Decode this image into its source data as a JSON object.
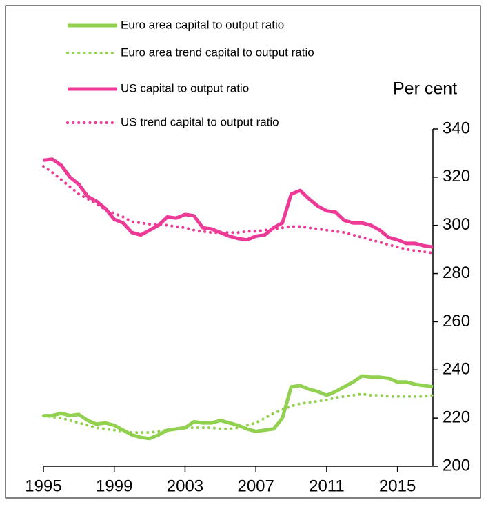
{
  "chart_data": {
    "type": "line",
    "y_axis_label": "Per cent",
    "x": [
      1995,
      1995.5,
      1996,
      1996.5,
      1997,
      1997.5,
      1998,
      1998.5,
      1999,
      1999.5,
      2000,
      2000.5,
      2001,
      2001.5,
      2002,
      2002.5,
      2003,
      2003.5,
      2004,
      2004.5,
      2005,
      2005.5,
      2006,
      2006.5,
      2007,
      2007.5,
      2008,
      2008.5,
      2009,
      2009.5,
      2010,
      2010.5,
      2011,
      2011.5,
      2012,
      2012.5,
      2013,
      2013.5,
      2014,
      2014.5,
      2015,
      2015.5,
      2016,
      2016.5,
      2017
    ],
    "series": [
      {
        "name": "Euro area capital to output ratio",
        "color": "#92d050",
        "style": "solid",
        "values": [
          221,
          221,
          222,
          221,
          221.5,
          219,
          217.5,
          218,
          217,
          215,
          213,
          212,
          211.5,
          213,
          215,
          215.5,
          216,
          218.5,
          218,
          218,
          219,
          218,
          217,
          215.5,
          214.5,
          215,
          215.5,
          220,
          233,
          233.5,
          232,
          231,
          229.5,
          231,
          233,
          235,
          237.5,
          237,
          237,
          236.5,
          235,
          235,
          234,
          233.5,
          233
        ]
      },
      {
        "name": "Euro area trend capital to output ratio",
        "color": "#92d050",
        "style": "dotted",
        "values": [
          221,
          220.5,
          220,
          219,
          218,
          217,
          216,
          215.5,
          215,
          214.5,
          214,
          214,
          214,
          214.5,
          215,
          215.5,
          216,
          216,
          216,
          216,
          215.5,
          215.5,
          216,
          217,
          218,
          220,
          222,
          223.5,
          225,
          226,
          226.5,
          227,
          227.5,
          228.5,
          229,
          229.5,
          230,
          229.5,
          229.5,
          229,
          229,
          229,
          229,
          229,
          229.5
        ]
      },
      {
        "name": "US  capital to output ratio",
        "color": "#ee3a97",
        "style": "solid",
        "values": [
          327,
          327.5,
          325,
          320,
          317,
          312,
          310,
          307,
          302.5,
          301,
          297,
          296,
          298,
          300,
          303.5,
          303,
          304.5,
          304,
          299,
          298.5,
          297,
          295.5,
          294.5,
          294,
          295.5,
          296,
          299,
          301,
          313,
          314.5,
          311,
          308,
          306,
          305.5,
          302,
          301,
          301,
          300,
          298,
          295,
          294,
          292.5,
          292.5,
          291.5,
          291
        ]
      },
      {
        "name": "US trend capital to output ratio",
        "color": "#ee3a97",
        "style": "dotted",
        "values": [
          324.5,
          322,
          319,
          316,
          313,
          311,
          309,
          306.5,
          305,
          303.5,
          301.5,
          301,
          300.5,
          300.5,
          300,
          299.5,
          299,
          298,
          297.5,
          297,
          297,
          297,
          297,
          297.5,
          297.5,
          298,
          298.5,
          299,
          299.5,
          299.5,
          299,
          298.5,
          298,
          297.5,
          297,
          296,
          295,
          294,
          293,
          292,
          291,
          290,
          289.5,
          289,
          288.5
        ]
      }
    ],
    "xlim": [
      1995,
      2017
    ],
    "xticks": [
      1995,
      1999,
      2003,
      2007,
      2011,
      2015
    ],
    "ylim": [
      200,
      340
    ],
    "yticks": [
      200,
      220,
      240,
      260,
      280,
      300,
      320,
      340
    ],
    "y_axis_side": "right"
  }
}
